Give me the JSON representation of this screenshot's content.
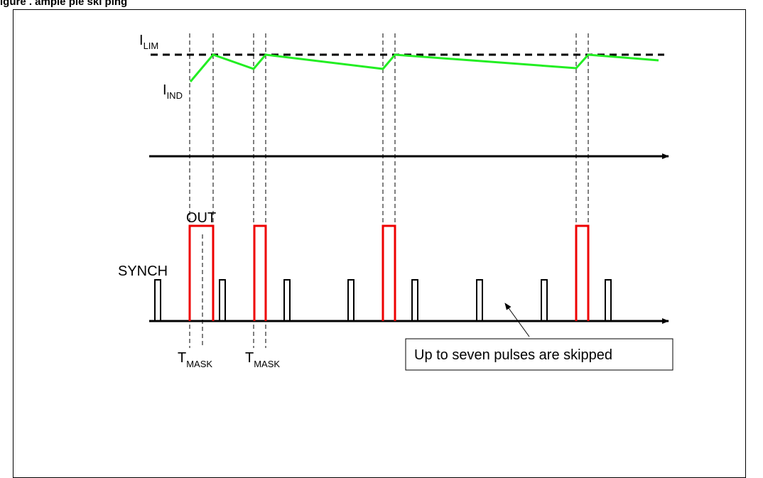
{
  "figure": {
    "caption": "igure   .    ample    ple  ski ping",
    "colors": {
      "current": "#22ee22",
      "out": "#ee0000",
      "synch": "#000000",
      "limit": "#000000"
    }
  },
  "labels": {
    "ilim_main": "I",
    "ilim_sub": "LIM",
    "iind_main": "I",
    "iind_sub": "IND",
    "out": "OUT",
    "synch": "SYNCH",
    "tmask_main": "T",
    "tmask_sub": "MASK",
    "callout": "Up to seven pulses are skipped"
  }
}
